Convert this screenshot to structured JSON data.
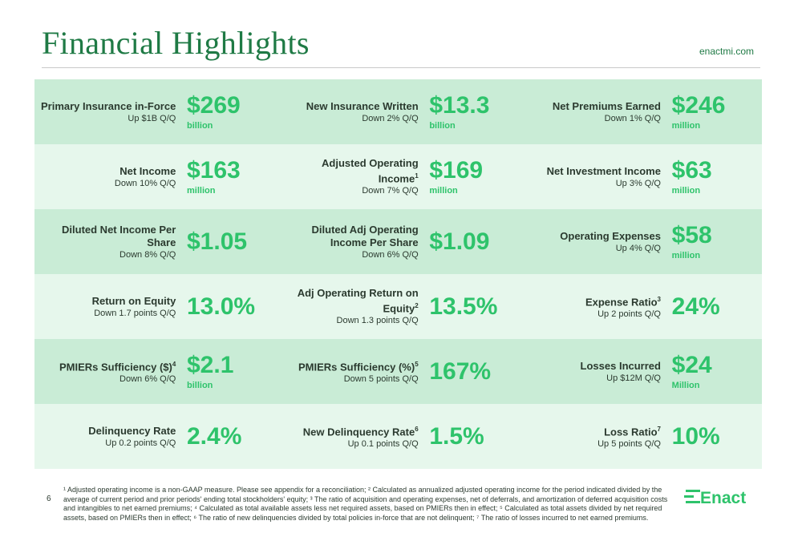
{
  "header": {
    "title": "Financial Highlights",
    "website": "enactmi.com"
  },
  "metrics": [
    [
      {
        "name": "Primary Insurance in-Force",
        "sup": "",
        "sub": "Up $1B Q/Q",
        "value": "$269",
        "unit": "billion"
      },
      {
        "name": "New Insurance Written",
        "sup": "",
        "sub": "Down 2% Q/Q",
        "value": "$13.3",
        "unit": "billion"
      },
      {
        "name": "Net Premiums Earned",
        "sup": "",
        "sub": "Down 1% Q/Q",
        "value": "$246",
        "unit": "million"
      }
    ],
    [
      {
        "name": "Net Income",
        "sup": "",
        "sub": "Down 10% Q/Q",
        "value": "$163",
        "unit": "million"
      },
      {
        "name": "Adjusted Operating Income",
        "sup": "1",
        "sub": "Down 7% Q/Q",
        "value": "$169",
        "unit": "million"
      },
      {
        "name": "Net Investment Income",
        "sup": "",
        "sub": "Up 3% Q/Q",
        "value": "$63",
        "unit": "million"
      }
    ],
    [
      {
        "name": "Diluted Net Income Per Share",
        "sup": "",
        "sub": "Down 8% Q/Q",
        "value": "$1.05",
        "unit": ""
      },
      {
        "name": "Diluted Adj Operating Income Per Share",
        "sup": "",
        "sub": "Down 6% Q/Q",
        "value": "$1.09",
        "unit": ""
      },
      {
        "name": "Operating Expenses",
        "sup": "",
        "sub": "Up 4% Q/Q",
        "value": "$58",
        "unit": "million"
      }
    ],
    [
      {
        "name": "Return on Equity",
        "sup": "",
        "sub": "Down 1.7 points Q/Q",
        "value": "13.0%",
        "unit": ""
      },
      {
        "name": "Adj Operating Return on Equity",
        "sup": "2",
        "sub": "Down 1.3 points Q/Q",
        "value": "13.5%",
        "unit": ""
      },
      {
        "name": "Expense Ratio",
        "sup": "3",
        "sub": "Up 2 points Q/Q",
        "value": "24%",
        "unit": ""
      }
    ],
    [
      {
        "name": "PMIERs Sufficiency ($)",
        "sup": "4",
        "sub": "Down 6% Q/Q",
        "value": "$2.1",
        "unit": "billion"
      },
      {
        "name": "PMIERs Sufficiency (%)",
        "sup": "5",
        "sub": "Down 5 points Q/Q",
        "value": "167%",
        "unit": ""
      },
      {
        "name": "Losses Incurred",
        "sup": "",
        "sub": "Up $12M Q/Q",
        "value": "$24",
        "unit": "Million"
      }
    ],
    [
      {
        "name": "Delinquency Rate",
        "sup": "",
        "sub": "Up 0.2 points Q/Q",
        "value": "2.4%",
        "unit": ""
      },
      {
        "name": "New Delinquency Rate",
        "sup": "6",
        "sub": "Up 0.1 points Q/Q",
        "value": "1.5%",
        "unit": ""
      },
      {
        "name": "Loss Ratio",
        "sup": "7",
        "sub": "Up 5 points Q/Q",
        "value": "10%",
        "unit": ""
      }
    ]
  ],
  "footer": {
    "page_number": "6",
    "footnotes": "¹ Adjusted operating income is a non-GAAP measure. Please see appendix for a reconciliation; ² Calculated as annualized adjusted operating income for the period indicated divided by the average of current period and prior periods' ending total stockholders' equity; ³ The ratio of acquisition and operating expenses, net of deferrals, and amortization of deferred acquisition costs and intangibles to net earned premiums; ⁴ Calculated as total available assets less net required assets, based on PMIERs then in effect; ⁵ Calculated as total assets divided by net required assets, based on PMIERs then in effect;  ⁶ The ratio of new delinquencies divided by total policies in-force that are not delinquent; ⁷ The ratio of losses incurred to net earned premiums.",
    "logo_text": "Enact"
  },
  "colors": {
    "brand_green": "#1f7a45",
    "value_green": "#2ec36b",
    "row_dark": "#c9ecd6",
    "row_light": "#e6f7ec"
  }
}
